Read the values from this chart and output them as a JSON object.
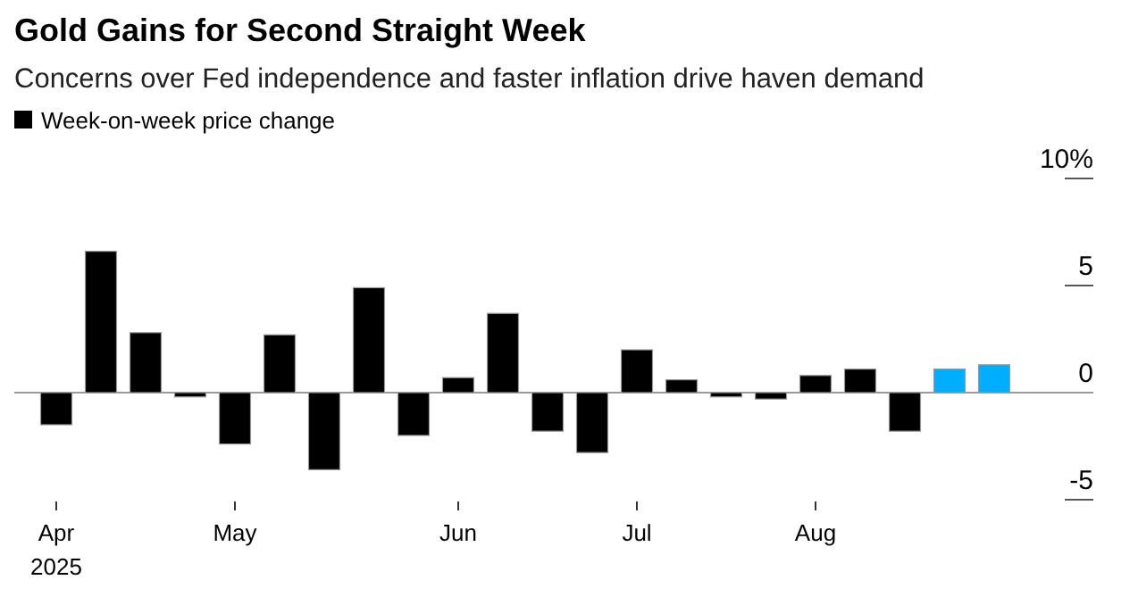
{
  "chart_data": {
    "type": "bar",
    "title": "Gold Gains for Second Straight Week",
    "subtitle": "Concerns over Fed independence and faster inflation drive haven demand",
    "categories": [
      "Apr\n2025",
      null,
      null,
      null,
      "May",
      null,
      null,
      null,
      null,
      "Jun",
      null,
      null,
      null,
      "Jul",
      null,
      null,
      null,
      "Aug",
      null,
      null,
      null,
      null
    ],
    "series": [
      {
        "name": "Week-on-week price change",
        "color": "#000000",
        "values": [
          -1.5,
          6.6,
          2.8,
          -0.2,
          -2.4,
          2.7,
          -3.6,
          4.9,
          -2.0,
          0.7,
          3.7,
          -1.8,
          -2.8,
          2.0,
          0.6,
          -0.2,
          -0.3,
          0.8,
          1.1,
          -1.8,
          1.1,
          1.3
        ],
        "colors": [
          "#000000",
          "#000000",
          "#000000",
          "#000000",
          "#000000",
          "#000000",
          "#000000",
          "#000000",
          "#000000",
          "#000000",
          "#000000",
          "#000000",
          "#000000",
          "#000000",
          "#000000",
          "#000000",
          "#000000",
          "#000000",
          "#000000",
          "#000000",
          "#00aeff",
          "#00aeff"
        ]
      }
    ],
    "ylim": [
      -5,
      10
    ],
    "yticks": [
      -5,
      0,
      5,
      {
        "value": 10,
        "label": "10%"
      }
    ],
    "grid": "y",
    "legend": "top left"
  }
}
